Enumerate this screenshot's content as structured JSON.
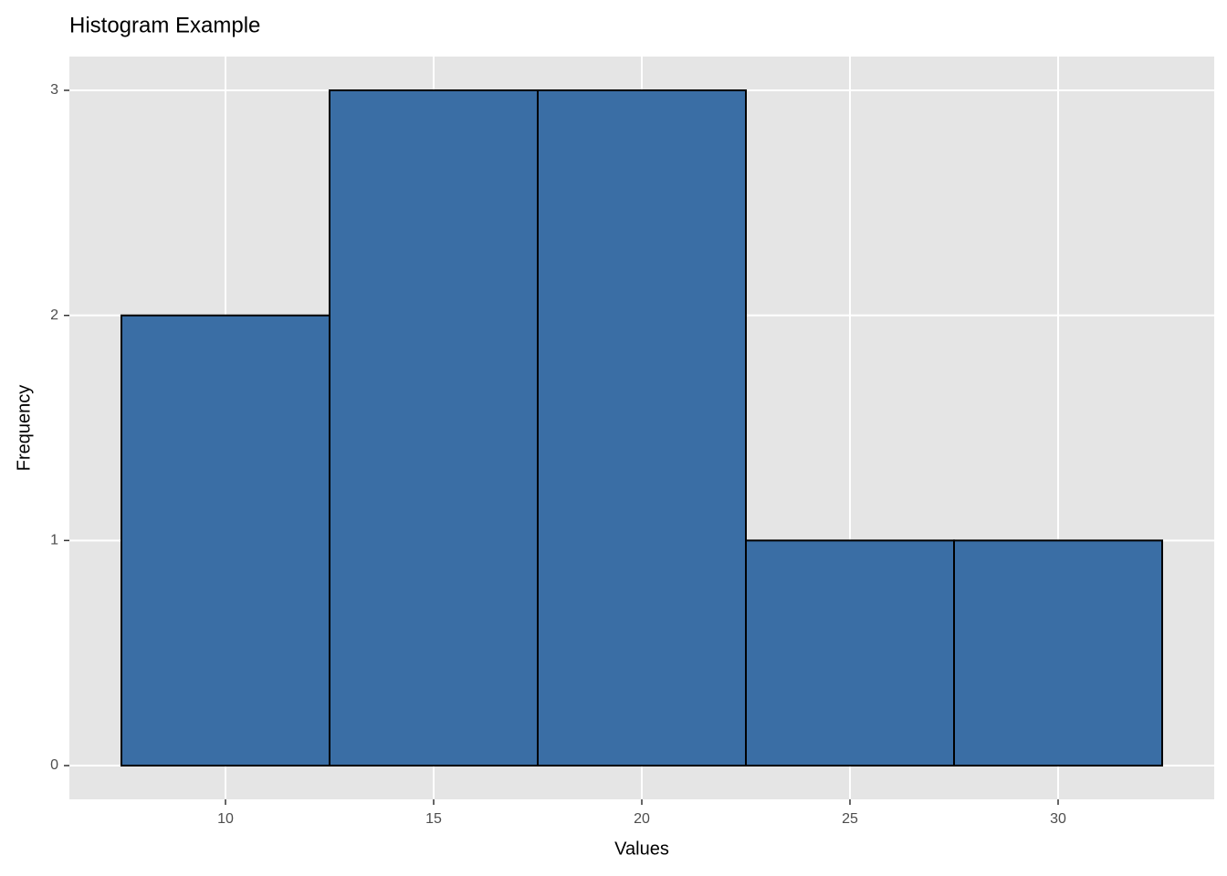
{
  "chart_data": {
    "type": "histogram",
    "title": "Histogram Example",
    "x_label": "Values",
    "y_label": "Frequency",
    "bins": [
      7.5,
      12.5,
      17.5,
      22.5,
      27.5,
      32.5
    ],
    "values": [
      2,
      3,
      3,
      1,
      1
    ],
    "color": "#3a6ea5",
    "edge_color": "#000000",
    "xlim": [
      6.25,
      33.75
    ],
    "ylim": [
      -0.15,
      3.15
    ],
    "xticks": [
      10,
      15,
      20,
      25,
      30
    ],
    "yticks": [
      0,
      1,
      2,
      3
    ],
    "grid": true
  }
}
